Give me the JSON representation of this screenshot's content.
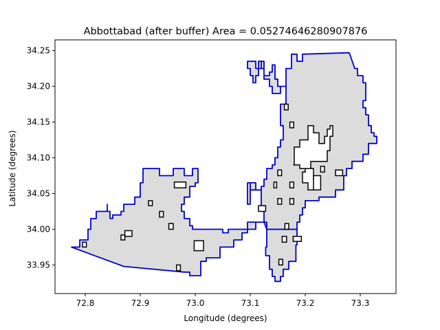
{
  "title": "Abbottabad (after buffer) Area = 0.05274646280907876",
  "chart_data": {
    "type": "map",
    "xlabel": "Longitude (degrees)",
    "ylabel": "Latitude (degrees)",
    "xlim": [
      72.745,
      73.365
    ],
    "ylim": [
      33.91,
      34.265
    ],
    "xticks": [
      72.8,
      72.9,
      73.0,
      73.1,
      73.2,
      73.3
    ],
    "yticks": [
      33.95,
      34.0,
      34.05,
      34.1,
      34.15,
      34.2,
      34.25
    ],
    "xtick_labels": [
      "72.8",
      "72.9",
      "73.0",
      "73.1",
      "73.2",
      "73.3"
    ],
    "ytick_labels": [
      "33.95",
      "34.00",
      "34.05",
      "34.10",
      "34.15",
      "34.20",
      "34.25"
    ],
    "fill_color": "#dcdcdc",
    "outline_color": "#0000cc",
    "hole_color": "#000000",
    "outline": [
      [
        72.775,
        33.975
      ],
      [
        72.87,
        33.948
      ],
      [
        72.98,
        33.94
      ],
      [
        72.99,
        33.94
      ],
      [
        72.99,
        33.935
      ],
      [
        73.01,
        33.935
      ],
      [
        73.01,
        33.955
      ],
      [
        73.02,
        33.955
      ],
      [
        73.02,
        33.96
      ],
      [
        73.045,
        33.96
      ],
      [
        73.045,
        33.975
      ],
      [
        73.07,
        33.975
      ],
      [
        73.07,
        33.985
      ],
      [
        73.085,
        33.985
      ],
      [
        73.085,
        33.995
      ],
      [
        73.095,
        33.995
      ],
      [
        73.095,
        34.01
      ],
      [
        73.13,
        34.01
      ],
      [
        73.13,
        34.0
      ],
      [
        73.185,
        34.0
      ],
      [
        73.185,
        33.978
      ],
      [
        73.183,
        33.978
      ],
      [
        73.183,
        33.955
      ],
      [
        73.17,
        33.955
      ],
      [
        73.17,
        33.944
      ],
      [
        73.16,
        33.944
      ],
      [
        73.16,
        33.934
      ],
      [
        73.155,
        33.934
      ],
      [
        73.155,
        33.927
      ],
      [
        73.145,
        33.927
      ],
      [
        73.145,
        33.934
      ],
      [
        73.14,
        33.934
      ],
      [
        73.14,
        33.944
      ],
      [
        73.135,
        33.944
      ],
      [
        73.135,
        33.963
      ],
      [
        73.128,
        33.963
      ],
      [
        73.128,
        33.975
      ],
      [
        73.13,
        33.975
      ],
      [
        73.13,
        34.0
      ],
      [
        73.125,
        34.01
      ],
      [
        73.11,
        34.01
      ],
      [
        73.11,
        34.0
      ],
      [
        73.06,
        34.0
      ],
      [
        73.06,
        33.995
      ],
      [
        73.05,
        33.995
      ],
      [
        73.05,
        34.0
      ],
      [
        73.0,
        34.0
      ],
      [
        72.995,
        34.0
      ],
      [
        72.995,
        34.005
      ],
      [
        72.99,
        34.005
      ],
      [
        72.99,
        34.015
      ],
      [
        72.98,
        34.015
      ],
      [
        72.98,
        34.025
      ],
      [
        72.975,
        34.025
      ],
      [
        72.975,
        34.035
      ],
      [
        72.98,
        34.035
      ],
      [
        72.98,
        34.045
      ],
      [
        72.99,
        34.045
      ],
      [
        72.99,
        34.06
      ],
      [
        73.0,
        34.06
      ],
      [
        73.0,
        34.065
      ],
      [
        73.005,
        34.065
      ],
      [
        73.005,
        34.085
      ],
      [
        72.995,
        34.085
      ],
      [
        72.995,
        34.075
      ],
      [
        72.98,
        34.075
      ],
      [
        72.98,
        34.085
      ],
      [
        72.96,
        34.085
      ],
      [
        72.96,
        34.075
      ],
      [
        72.935,
        34.075
      ],
      [
        72.935,
        34.085
      ],
      [
        72.905,
        34.085
      ],
      [
        72.905,
        34.065
      ],
      [
        72.9,
        34.065
      ],
      [
        72.9,
        34.045
      ],
      [
        72.89,
        34.045
      ],
      [
        72.89,
        34.035
      ],
      [
        72.87,
        34.035
      ],
      [
        72.87,
        34.025
      ],
      [
        72.865,
        34.025
      ],
      [
        72.865,
        34.02
      ],
      [
        72.85,
        34.02
      ],
      [
        72.85,
        34.015
      ],
      [
        72.845,
        34.015
      ],
      [
        72.845,
        34.025
      ],
      [
        72.84,
        34.025
      ],
      [
        72.84,
        34.035
      ],
      [
        72.84,
        34.025
      ],
      [
        72.82,
        34.025
      ],
      [
        72.82,
        34.015
      ],
      [
        72.81,
        34.015
      ],
      [
        72.81,
        34.0
      ],
      [
        72.805,
        34.0
      ],
      [
        72.805,
        33.985
      ],
      [
        72.79,
        33.985
      ],
      [
        72.79,
        33.975
      ],
      [
        72.775,
        33.975
      ]
    ],
    "outline_north": [
      [
        73.13,
        34.0
      ],
      [
        73.13,
        34.01
      ],
      [
        73.125,
        34.01
      ],
      [
        73.125,
        34.03
      ],
      [
        73.12,
        34.03
      ],
      [
        73.12,
        34.055
      ],
      [
        73.11,
        34.055
      ],
      [
        73.11,
        34.065
      ],
      [
        73.1,
        34.065
      ],
      [
        73.1,
        34.035
      ],
      [
        73.095,
        34.035
      ],
      [
        73.095,
        34.065
      ],
      [
        73.1,
        34.065
      ],
      [
        73.1,
        34.055
      ],
      [
        73.12,
        34.055
      ],
      [
        73.12,
        34.06
      ],
      [
        73.125,
        34.06
      ],
      [
        73.125,
        34.07
      ],
      [
        73.13,
        34.07
      ],
      [
        73.13,
        34.085
      ],
      [
        73.14,
        34.085
      ],
      [
        73.14,
        34.09
      ],
      [
        73.145,
        34.09
      ],
      [
        73.145,
        34.1
      ],
      [
        73.15,
        34.1
      ],
      [
        73.15,
        34.115
      ],
      [
        73.155,
        34.115
      ],
      [
        73.155,
        34.125
      ],
      [
        73.16,
        34.125
      ],
      [
        73.16,
        34.145
      ],
      [
        73.155,
        34.145
      ],
      [
        73.155,
        34.165
      ],
      [
        73.155,
        34.175
      ],
      [
        73.165,
        34.175
      ],
      [
        73.165,
        34.2
      ],
      [
        73.15,
        34.2
      ],
      [
        73.15,
        34.21
      ],
      [
        73.145,
        34.21
      ],
      [
        73.145,
        34.23
      ],
      [
        73.14,
        34.23
      ],
      [
        73.14,
        34.22
      ],
      [
        73.135,
        34.22
      ],
      [
        73.135,
        34.215
      ],
      [
        73.125,
        34.215
      ],
      [
        73.125,
        34.225
      ],
      [
        73.12,
        34.225
      ],
      [
        73.12,
        34.235
      ],
      [
        73.115,
        34.235
      ],
      [
        73.115,
        34.215
      ],
      [
        73.11,
        34.215
      ],
      [
        73.11,
        34.205
      ],
      [
        73.105,
        34.205
      ],
      [
        73.105,
        34.215
      ],
      [
        73.1,
        34.215
      ],
      [
        73.1,
        34.225
      ],
      [
        73.095,
        34.225
      ],
      [
        73.095,
        34.235
      ],
      [
        73.11,
        34.235
      ],
      [
        73.11,
        34.225
      ],
      [
        73.12,
        34.225
      ],
      [
        73.12,
        34.235
      ],
      [
        73.125,
        34.235
      ],
      [
        73.125,
        34.21
      ],
      [
        73.135,
        34.21
      ],
      [
        73.135,
        34.2
      ],
      [
        73.14,
        34.2
      ],
      [
        73.14,
        34.19
      ],
      [
        73.155,
        34.19
      ],
      [
        73.155,
        34.2
      ],
      [
        73.165,
        34.2
      ],
      [
        73.165,
        34.225
      ],
      [
        73.175,
        34.225
      ],
      [
        73.175,
        34.245
      ],
      [
        73.185,
        34.245
      ],
      [
        73.185,
        34.235
      ],
      [
        73.195,
        34.235
      ],
      [
        73.195,
        34.245
      ],
      [
        73.28,
        34.247
      ],
      [
        73.29,
        34.225
      ],
      [
        73.295,
        34.225
      ],
      [
        73.295,
        34.215
      ],
      [
        73.305,
        34.215
      ],
      [
        73.305,
        34.205
      ],
      [
        73.31,
        34.205
      ],
      [
        73.31,
        34.18
      ],
      [
        73.305,
        34.18
      ],
      [
        73.305,
        34.17
      ],
      [
        73.31,
        34.17
      ],
      [
        73.31,
        34.16
      ],
      [
        73.315,
        34.16
      ],
      [
        73.315,
        34.145
      ],
      [
        73.32,
        34.145
      ],
      [
        73.32,
        34.135
      ],
      [
        73.325,
        34.135
      ],
      [
        73.325,
        34.13
      ],
      [
        73.33,
        34.13
      ],
      [
        73.33,
        34.12
      ],
      [
        73.315,
        34.12
      ],
      [
        73.315,
        34.105
      ],
      [
        73.305,
        34.105
      ],
      [
        73.305,
        34.095
      ],
      [
        73.285,
        34.095
      ],
      [
        73.285,
        34.085
      ],
      [
        73.275,
        34.085
      ],
      [
        73.275,
        34.075
      ],
      [
        73.27,
        34.075
      ],
      [
        73.27,
        34.055
      ],
      [
        73.255,
        34.055
      ],
      [
        73.255,
        34.045
      ],
      [
        73.225,
        34.045
      ],
      [
        73.225,
        34.04
      ],
      [
        73.2,
        34.04
      ],
      [
        73.2,
        34.03
      ],
      [
        73.195,
        34.03
      ],
      [
        73.195,
        34.02
      ],
      [
        73.19,
        34.02
      ],
      [
        73.19,
        34.01
      ],
      [
        73.185,
        34.01
      ],
      [
        73.185,
        34.0
      ],
      [
        73.13,
        34.0
      ]
    ],
    "holes": [
      [
        [
          72.795,
          33.975
        ],
        [
          72.802,
          33.975
        ],
        [
          72.802,
          33.982
        ],
        [
          72.795,
          33.982
        ]
      ],
      [
        [
          72.865,
          33.985
        ],
        [
          72.872,
          33.985
        ],
        [
          72.872,
          33.992
        ],
        [
          72.865,
          33.992
        ]
      ],
      [
        [
          72.872,
          33.99
        ],
        [
          72.885,
          33.99
        ],
        [
          72.885,
          33.998
        ],
        [
          72.872,
          33.998
        ]
      ],
      [
        [
          72.915,
          34.033
        ],
        [
          72.922,
          34.033
        ],
        [
          72.922,
          34.04
        ],
        [
          72.915,
          34.04
        ]
      ],
      [
        [
          72.935,
          34.017
        ],
        [
          72.942,
          34.017
        ],
        [
          72.942,
          34.025
        ],
        [
          72.935,
          34.025
        ]
      ],
      [
        [
          72.952,
          34.0
        ],
        [
          72.96,
          34.0
        ],
        [
          72.96,
          34.008
        ],
        [
          72.952,
          34.008
        ]
      ],
      [
        [
          72.962,
          34.058
        ],
        [
          72.983,
          34.058
        ],
        [
          72.983,
          34.066
        ],
        [
          72.962,
          34.066
        ]
      ],
      [
        [
          72.966,
          33.942
        ],
        [
          72.973,
          33.942
        ],
        [
          72.973,
          33.95
        ],
        [
          72.966,
          33.95
        ]
      ],
      [
        [
          72.998,
          33.97
        ],
        [
          73.015,
          33.97
        ],
        [
          73.015,
          33.984
        ],
        [
          72.998,
          33.984
        ]
      ],
      [
        [
          73.115,
          34.025
        ],
        [
          73.128,
          34.025
        ],
        [
          73.128,
          34.033
        ],
        [
          73.115,
          34.033
        ]
      ],
      [
        [
          73.143,
          34.058
        ],
        [
          73.148,
          34.058
        ],
        [
          73.148,
          34.066
        ],
        [
          73.143,
          34.066
        ]
      ],
      [
        [
          73.15,
          34.075
        ],
        [
          73.157,
          34.075
        ],
        [
          73.157,
          34.083
        ],
        [
          73.15,
          34.083
        ]
      ],
      [
        [
          73.15,
          34.035
        ],
        [
          73.157,
          34.035
        ],
        [
          73.157,
          34.043
        ],
        [
          73.15,
          34.043
        ]
      ],
      [
        [
          73.152,
          33.95
        ],
        [
          73.159,
          33.95
        ],
        [
          73.159,
          33.958
        ],
        [
          73.152,
          33.958
        ]
      ],
      [
        [
          73.158,
          33.982
        ],
        [
          73.166,
          33.982
        ],
        [
          73.166,
          33.99
        ],
        [
          73.158,
          33.99
        ]
      ],
      [
        [
          73.163,
          34.0
        ],
        [
          73.17,
          34.0
        ],
        [
          73.17,
          34.008
        ],
        [
          73.163,
          34.008
        ]
      ],
      [
        [
          73.162,
          34.167
        ],
        [
          73.169,
          34.167
        ],
        [
          73.169,
          34.175
        ],
        [
          73.162,
          34.175
        ]
      ],
      [
        [
          73.172,
          34.142
        ],
        [
          73.179,
          34.142
        ],
        [
          73.179,
          34.15
        ],
        [
          73.172,
          34.15
        ]
      ],
      [
        [
          73.172,
          34.058
        ],
        [
          73.179,
          34.058
        ],
        [
          73.179,
          34.066
        ],
        [
          73.172,
          34.066
        ]
      ],
      [
        [
          73.172,
          34.035
        ],
        [
          73.179,
          34.035
        ],
        [
          73.179,
          34.043
        ],
        [
          73.172,
          34.043
        ]
      ],
      [
        [
          73.178,
          33.983
        ],
        [
          73.193,
          33.983
        ],
        [
          73.193,
          33.99
        ],
        [
          73.178,
          33.99
        ]
      ],
      [
        [
          73.255,
          34.075
        ],
        [
          73.268,
          34.075
        ],
        [
          73.268,
          34.083
        ],
        [
          73.255,
          34.083
        ]
      ],
      [
        [
          73.178,
          34.09
        ],
        [
          73.19,
          34.09
        ],
        [
          73.19,
          34.085
        ],
        [
          73.215,
          34.085
        ],
        [
          73.215,
          34.07
        ],
        [
          73.22,
          34.07
        ],
        [
          73.22,
          34.055
        ],
        [
          73.205,
          34.055
        ],
        [
          73.205,
          34.065
        ],
        [
          73.195,
          34.065
        ],
        [
          73.195,
          34.08
        ],
        [
          73.2,
          34.08
        ],
        [
          73.2,
          34.085
        ],
        [
          73.21,
          34.085
        ],
        [
          73.21,
          34.095
        ],
        [
          73.24,
          34.095
        ],
        [
          73.24,
          34.11
        ],
        [
          73.245,
          34.11
        ],
        [
          73.245,
          34.13
        ],
        [
          73.25,
          34.13
        ],
        [
          73.25,
          34.145
        ],
        [
          73.245,
          34.145
        ],
        [
          73.245,
          34.14
        ],
        [
          73.24,
          34.14
        ],
        [
          73.24,
          34.13
        ],
        [
          73.235,
          34.13
        ],
        [
          73.235,
          34.12
        ],
        [
          73.225,
          34.12
        ],
        [
          73.225,
          34.135
        ],
        [
          73.215,
          34.135
        ],
        [
          73.215,
          34.145
        ],
        [
          73.205,
          34.145
        ],
        [
          73.205,
          34.125
        ],
        [
          73.19,
          34.125
        ],
        [
          73.19,
          34.115
        ],
        [
          73.18,
          34.115
        ],
        [
          73.18,
          34.09
        ]
      ],
      [
        [
          73.215,
          34.055
        ],
        [
          73.228,
          34.055
        ],
        [
          73.228,
          34.075
        ],
        [
          73.215,
          34.075
        ]
      ],
      [
        [
          73.228,
          34.08
        ],
        [
          73.235,
          34.08
        ],
        [
          73.235,
          34.088
        ],
        [
          73.228,
          34.088
        ]
      ]
    ]
  }
}
